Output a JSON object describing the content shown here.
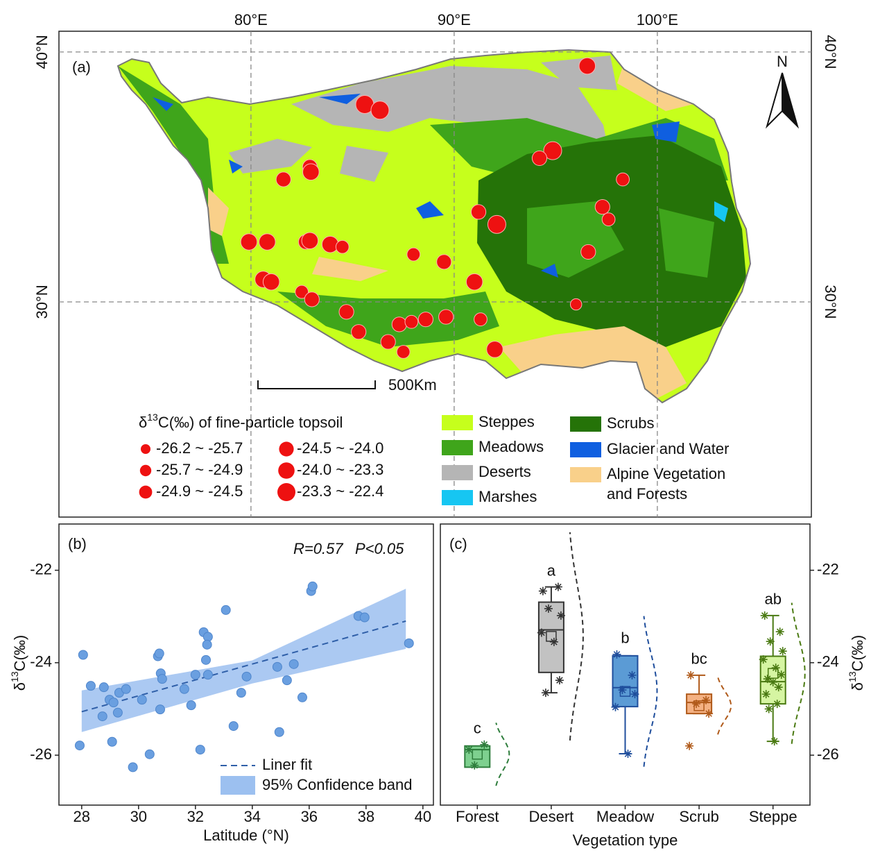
{
  "chart_data": [
    {
      "type": "map",
      "panel_label": "(a)",
      "xlim": [
        70.55,
        107.58
      ],
      "ylim": [
        21.39,
        40.83
      ],
      "xticks": [
        {
          "value": 80,
          "label": "80°E"
        },
        {
          "value": 90,
          "label": "90°E"
        },
        {
          "value": 100,
          "label": "100°E"
        }
      ],
      "yticks": [
        {
          "value": 40,
          "label": "40°N"
        },
        {
          "value": 30,
          "label": "30°N"
        }
      ],
      "color": "#ee1111",
      "lon": [
        96.55,
        85.6,
        86.35,
        94.85,
        94.2,
        82.9,
        82.95,
        81.6,
        98.3,
        97.3,
        97.6,
        91.2,
        92.1,
        79.9,
        80.8,
        82.7,
        82.9,
        83.9,
        84.5,
        88.0,
        89.5,
        96.6,
        80.6,
        81.0,
        91.0,
        82.5,
        83.0,
        96.0,
        84.7,
        87.3,
        87.9,
        88.6,
        89.6,
        91.3,
        85.3,
        86.75,
        87.5,
        92.0
      ],
      "lat": [
        39.44,
        37.9,
        37.67,
        36.05,
        35.75,
        35.4,
        35.2,
        34.9,
        34.9,
        33.8,
        33.3,
        33.6,
        33.1,
        32.4,
        32.4,
        32.4,
        32.45,
        32.3,
        32.2,
        31.9,
        31.6,
        32.0,
        30.9,
        30.8,
        30.8,
        30.4,
        30.1,
        29.9,
        29.6,
        29.1,
        29.2,
        29.3,
        29.4,
        29.3,
        28.8,
        28.4,
        28.0,
        28.1
      ],
      "values": [
        -23.6,
        -22.8,
        -22.8,
        -22.8,
        -24.2,
        -24.2,
        -23.6,
        -24.2,
        -24.7,
        -24.2,
        -24.7,
        -24.2,
        -22.8,
        -23.6,
        -23.6,
        -24.2,
        -23.6,
        -23.6,
        -24.7,
        -24.7,
        -24.2,
        -24.2,
        -23.6,
        -23.6,
        -23.6,
        -24.7,
        -24.2,
        -25.3,
        -24.2,
        -24.2,
        -24.7,
        -24.2,
        -24.2,
        -24.7,
        -24.2,
        -24.2,
        -24.7,
        -23.6
      ],
      "size_title": {
        "prefix": "δ",
        "sup": "13",
        "suffix": "C(‰) of fine-particle topsoil"
      },
      "size_classes": [
        {
          "label": "-26.2 ~ -25.7",
          "min": -26.2,
          "max": -25.7
        },
        {
          "label": "-25.7 ~ -24.9",
          "min": -25.7,
          "max": -24.9
        },
        {
          "label": "-24.9 ~ -24.5",
          "min": -24.9,
          "max": -24.5
        },
        {
          "label": "-24.5 ~ -24.0",
          "min": -24.5,
          "max": -24.0
        },
        {
          "label": "-24.0 ~ -23.3",
          "min": -24.0,
          "max": -23.3
        },
        {
          "label": "-23.3 ~ -22.4",
          "min": -23.3,
          "max": -22.4
        }
      ],
      "land_legend": [
        {
          "name": [
            "Steppes"
          ],
          "color": "#c6ff1c"
        },
        {
          "name": [
            "Meadows"
          ],
          "color": "#3fa51b"
        },
        {
          "name": [
            "Deserts"
          ],
          "color": "#b5b5b5"
        },
        {
          "name": [
            "Marshes"
          ],
          "color": "#16c6f2"
        },
        {
          "name": [
            "Scrubs"
          ],
          "color": "#257308"
        },
        {
          "name": [
            "Glacier and Water"
          ],
          "color": "#0f5fe0"
        },
        {
          "name": [
            "Alpine Vegetation",
            "and Forests"
          ],
          "color": "#f9d08a"
        }
      ],
      "scale_label": "500Km",
      "north_label": "N"
    },
    {
      "type": "scatter",
      "panel_label": "(b)",
      "xlim": [
        27.2,
        40.37
      ],
      "ylim": [
        -27.08,
        -21.0
      ],
      "xticks": [
        28,
        30,
        32,
        34,
        36,
        38,
        40
      ],
      "yticks": [
        -26,
        -24,
        -22
      ],
      "x_label": "Latitude (°N)",
      "y_label": {
        "prefix": "δ",
        "sup": "13",
        "suffix": "C(‰)"
      },
      "annotations": [
        "R=0.57",
        "P<0.05"
      ],
      "color": "#6a9fe0",
      "x": [
        27.93,
        28.05,
        28.32,
        28.78,
        28.73,
        29.07,
        28.98,
        29.12,
        29.27,
        29.32,
        29.56,
        29.8,
        30.12,
        30.39,
        30.68,
        30.73,
        30.78,
        30.83,
        30.76,
        31.61,
        31.85,
        32.0,
        32.17,
        32.29,
        32.44,
        32.41,
        32.37,
        32.44,
        33.07,
        33.34,
        33.61,
        33.8,
        34.88,
        34.95,
        35.22,
        35.46,
        35.76,
        36.07,
        36.12,
        37.73,
        37.95,
        39.51
      ],
      "values": [
        -25.79,
        -23.83,
        -24.5,
        -24.53,
        -25.16,
        -25.71,
        -24.8,
        -24.86,
        -25.08,
        -24.65,
        -24.57,
        -26.26,
        -24.8,
        -25.98,
        -23.86,
        -23.8,
        -24.23,
        -24.35,
        -25.01,
        -24.57,
        -24.92,
        -24.26,
        -25.88,
        -23.34,
        -23.44,
        -23.61,
        -23.94,
        -24.26,
        -22.86,
        -25.37,
        -24.65,
        -24.3,
        -24.09,
        -25.5,
        -24.38,
        -24.03,
        -24.75,
        -22.45,
        -22.35,
        -22.99,
        -23.02,
        -23.58
      ],
      "fit": {
        "name": "Liner fit",
        "color": "#2f5fa8",
        "x": [
          28,
          39.4
        ],
        "values": [
          -25.06,
          -23.1
        ]
      },
      "band": {
        "name": "95% Confidence band",
        "color": "#9cc0f0",
        "x": [
          28,
          34,
          39.4
        ],
        "upper": [
          -24.6,
          -23.95,
          -22.4
        ],
        "lower": [
          -25.5,
          -24.45,
          -23.7
        ]
      }
    },
    {
      "type": "box",
      "panel_label": "(c)",
      "ylim": [
        -27.08,
        -21.0
      ],
      "yticks": [
        -26,
        -24,
        -22
      ],
      "x_label": "Vegetation type",
      "y_label": {
        "prefix": "δ",
        "sup": "13",
        "suffix": "C(‰)"
      },
      "categories": [
        "Forest",
        "Desert",
        "Meadow",
        "Scrub",
        "Steppe"
      ],
      "groups": [
        {
          "letter": "c",
          "fill": "#7ed08f",
          "stroke": "#2e7d3c",
          "whisker_low": null,
          "q1": -26.26,
          "median": -25.88,
          "q3": -25.8,
          "whisker_high": null,
          "mean": -25.98,
          "points": [
            -25.88,
            -25.77,
            -26.22
          ]
        },
        {
          "letter": "a",
          "fill": "#c2c2c2",
          "stroke": "#333333",
          "whisker_low": -24.65,
          "q1": -24.21,
          "median": -23.29,
          "q3": -22.69,
          "whisker_high": -22.36,
          "mean": -23.43,
          "points": [
            -22.45,
            -22.36,
            -22.83,
            -22.98,
            -23.35,
            -23.55,
            -24.38,
            -24.65
          ]
        },
        {
          "letter": "b",
          "fill": "#5b9bd5",
          "stroke": "#1f4e9c",
          "whisker_low": -25.97,
          "q1": -24.95,
          "median": -24.54,
          "q3": -23.85,
          "whisker_high": -23.85,
          "mean": -24.62,
          "points": [
            -23.82,
            -24.27,
            -24.59,
            -24.68,
            -24.96,
            -25.97
          ]
        },
        {
          "letter": "bc",
          "fill": "#f4b183",
          "stroke": "#b05a1a",
          "whisker_low": -25.1,
          "q1": -25.1,
          "median": -24.86,
          "q3": -24.68,
          "whisker_high": -24.27,
          "mean": -24.93,
          "points": [
            -24.27,
            -24.81,
            -24.89,
            -25.1,
            -25.8
          ]
        },
        {
          "letter": "ab",
          "fill": "#d6f5a2",
          "stroke": "#4a7a12",
          "whisker_low": -25.7,
          "q1": -24.89,
          "median": -24.41,
          "q3": -23.86,
          "whisker_high": -22.98,
          "mean": -24.23,
          "points": [
            -22.98,
            -23.33,
            -23.54,
            -23.75,
            -23.93,
            -24.11,
            -24.26,
            -24.35,
            -24.42,
            -24.53,
            -24.68,
            -24.89,
            -25.0,
            -25.7
          ]
        }
      ]
    }
  ]
}
